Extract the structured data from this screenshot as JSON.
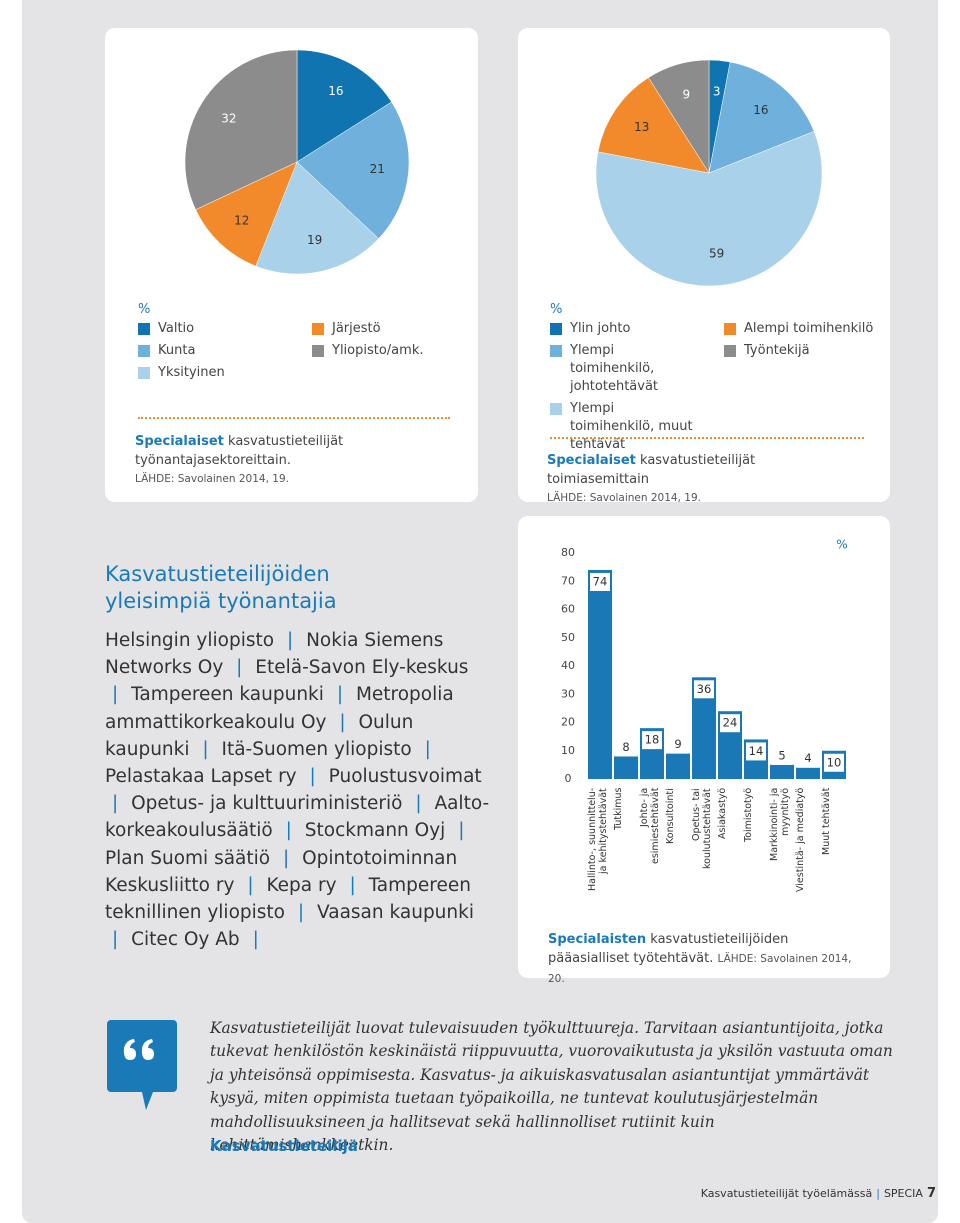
{
  "chart_data": [
    {
      "type": "pie",
      "unit": "%",
      "categories": [
        "Valtio",
        "Kunta",
        "Yksityinen",
        "Järjestö",
        "Yliopisto/amk."
      ],
      "values": [
        16,
        21,
        19,
        12,
        32
      ],
      "colors": [
        "#0f74b0",
        "#6fb0dc",
        "#a9d1ea",
        "#f2892a",
        "#8c8c8c"
      ],
      "caption": {
        "highlight": "Specialaiset",
        "text": "kasvatustieteilijät työnantajasektoreittain.",
        "source": "LÄHDE: Savolainen 2014, 19."
      }
    },
    {
      "type": "pie",
      "unit": "%",
      "categories": [
        "Ylin johto",
        "Ylempi toimihenkilö, johtotehtävät",
        "Ylempi toimihenkilö, muut tehtävät",
        "Alempi toimihenkilö",
        "Työntekijä"
      ],
      "values": [
        3,
        16,
        59,
        13,
        9
      ],
      "colors": [
        "#0f74b0",
        "#6fb0dc",
        "#a9d1ea",
        "#f2892a",
        "#8c8c8c"
      ],
      "caption": {
        "highlight": "Specialaiset",
        "text": "kasvatustieteilijät toimiasemittain",
        "source": "LÄHDE: Savolainen 2014, 19."
      }
    },
    {
      "type": "bar",
      "unit": "%",
      "categories": [
        "Hallinto-, suunnittelu- ja kehitystehtävät",
        "Tutkimus",
        "Johto- ja esimiestehtävät",
        "Konsultointi",
        "Opetus- tai koulutustehtävät",
        "Asiakastyö",
        "Toimistotyö",
        "Markkinointi- ja myyntityö",
        "Viestintä- ja mediatyö",
        "Muut tehtävät"
      ],
      "values": [
        74,
        8,
        18,
        9,
        36,
        24,
        14,
        5,
        4,
        10
      ],
      "color": "#1b78b6",
      "ylim": [
        0,
        80
      ],
      "yticks": [
        0,
        10,
        20,
        30,
        40,
        50,
        60,
        70,
        80
      ],
      "grid": false,
      "caption": {
        "highlight": "Specialaisten",
        "text": "kasvatustieteilijöiden pääasialliset työtehtävät.",
        "source": "LÄHDE: Savolainen 2014, 20."
      }
    }
  ],
  "employers": {
    "title": "Kasvatustieteilijöiden yleisimpiä työnantajia",
    "separator": "|",
    "items": [
      "Helsingin yliopisto",
      "Nokia Siemens Networks Oy",
      "Etelä-Savon Ely-keskus",
      "Tampereen kaupunki",
      "Metropolia ammattikorkeakoulu Oy",
      "Oulun kaupunki",
      "Itä-Suomen yliopisto",
      "Pelastakaa Lapset ry",
      "Puolustusvoimat",
      "Opetus- ja kulttuuriministeriö",
      "Aalto-korkeakoulusäätiö",
      "Stockmann Oyj",
      "Plan Suomi säätiö",
      "Opintotoiminnan Keskusliitto ry",
      "Kepa ry",
      "Tampereen teknillinen yliopisto",
      "Vaasan kaupunki",
      "Citec Oy Ab"
    ]
  },
  "quote": {
    "text": "Kasvatustieteilijät luovat tulevaisuuden työkulttuureja. Tarvitaan asiantuntijoita, jotka tukevat henkilöstön keskinäistä riippuvuutta, vuorovaikutusta ja yksilön vastuuta oman ja yhteisönsä oppimisesta. Kasvatus- ja aikuiskasvatusalan asiantuntijat ymmärtävät kysyä, miten oppimista tuetaan työpaikoilla, ne tuntevat koulutusjärjestelmän mahdollisuuksineen ja hallitsevat sekä hallinnolliset rutiinit kuin kehittämishankkeetkin.",
    "author": "Kasvatustieteilijä"
  },
  "footer": {
    "publication": "Kasvatustieteilijät työelämässä",
    "separator": "|",
    "magazine": "SPECIA",
    "page": "7"
  }
}
